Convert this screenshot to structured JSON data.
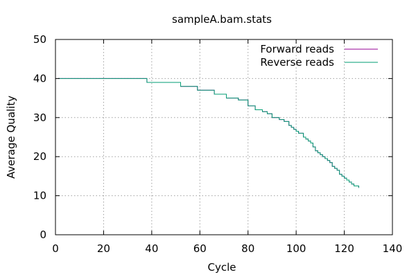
{
  "chart_data": {
    "type": "line",
    "title": "sampleA.bam.stats",
    "xlabel": "Cycle",
    "ylabel": "Average Quality",
    "xlim": [
      0,
      140
    ],
    "ylim": [
      0,
      50
    ],
    "xticks": [
      0,
      20,
      40,
      60,
      80,
      100,
      120,
      140
    ],
    "yticks": [
      0,
      10,
      20,
      30,
      40,
      50
    ],
    "grid": true,
    "legend_position": "top-right",
    "series": [
      {
        "name": "Forward reads",
        "color": "#940094",
        "x": [
          1,
          37,
          38,
          52,
          59,
          66,
          71,
          76,
          80,
          83,
          86,
          88,
          90,
          93,
          95,
          97,
          98,
          99,
          100,
          101,
          103,
          104,
          105,
          106,
          107,
          108,
          109,
          110,
          111,
          112,
          113,
          114,
          115,
          116,
          117,
          118,
          119,
          120,
          121,
          122,
          123,
          124,
          125,
          126
        ],
        "y": [
          40,
          40,
          39,
          38,
          37,
          36,
          35,
          34.5,
          33,
          32,
          31.5,
          31,
          30,
          29.5,
          29,
          28,
          27.5,
          27,
          26.5,
          26,
          25,
          24.5,
          24,
          23.5,
          22.5,
          21.5,
          21,
          20.5,
          20,
          19.5,
          19,
          18.5,
          17.5,
          17,
          16.5,
          15.5,
          15,
          14.5,
          14,
          13.5,
          13,
          12.5,
          12.5,
          12
        ]
      },
      {
        "name": "Reverse reads",
        "color": "#009e73",
        "x": [
          1,
          37,
          38,
          52,
          59,
          66,
          71,
          76,
          80,
          83,
          86,
          88,
          90,
          93,
          95,
          97,
          98,
          99,
          100,
          101,
          103,
          104,
          105,
          106,
          107,
          108,
          109,
          110,
          111,
          112,
          113,
          114,
          115,
          116,
          117,
          118,
          119,
          120,
          121,
          122,
          123,
          124,
          125,
          126
        ],
        "y": [
          40,
          40,
          39,
          38,
          37,
          36,
          35,
          34.5,
          33,
          32,
          31.5,
          31,
          30,
          29.5,
          29,
          28,
          27.5,
          27,
          26.5,
          26,
          25,
          24.5,
          24,
          23.5,
          22.5,
          21.5,
          21,
          20.5,
          20,
          19.5,
          19,
          18.5,
          17.5,
          17,
          16.5,
          15.5,
          15,
          14.5,
          14,
          13.5,
          13,
          12.5,
          12.5,
          12
        ]
      }
    ]
  }
}
